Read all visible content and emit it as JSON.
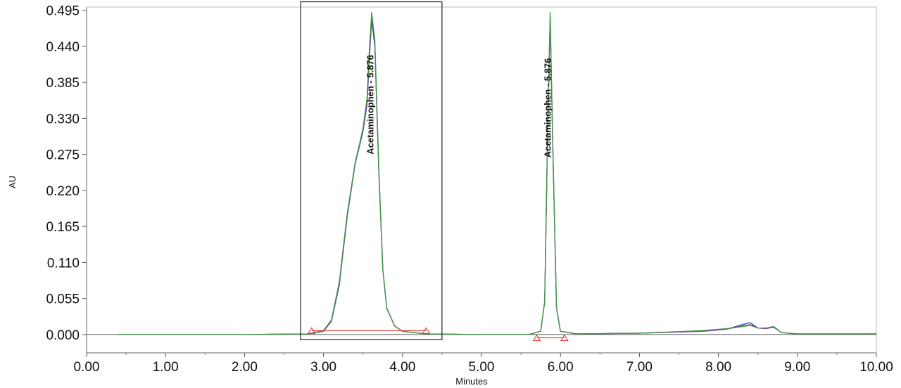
{
  "chart_data": {
    "type": "line",
    "title": "",
    "xlabel": "Minutes",
    "ylabel": "AU",
    "xlim": [
      0,
      10
    ],
    "ylim": [
      -0.028,
      0.5
    ],
    "x_ticks": [
      "0.00",
      "1.00",
      "2.00",
      "3.00",
      "4.00",
      "5.00",
      "6.00",
      "7.00",
      "8.00",
      "9.00",
      "10.00"
    ],
    "y_ticks": [
      "0.000",
      "0.055",
      "0.110",
      "0.165",
      "0.220",
      "0.275",
      "0.330",
      "0.385",
      "0.440",
      "0.495"
    ],
    "grid": false,
    "legend": "none",
    "colors": {
      "blue": "#2c3fa8",
      "purple": "#8a3fb0",
      "green": "#3d9a3d",
      "red": "#e83030"
    },
    "series": [
      {
        "color": "#2c3fa8",
        "x": [
          0.4,
          1.0,
          2.0,
          2.8,
          3.0,
          3.1,
          3.2,
          3.3,
          3.4,
          3.45,
          3.5,
          3.55,
          3.58,
          3.61,
          3.65,
          3.7,
          3.75,
          3.8,
          3.9,
          4.0,
          4.3,
          5.0,
          5.6,
          5.75,
          5.8,
          5.84,
          5.87,
          5.9,
          5.95,
          6.0,
          6.2,
          7.0,
          7.8,
          8.1,
          8.3,
          8.4,
          8.5,
          8.6,
          8.7,
          8.8,
          9.0,
          10.0
        ],
        "y": [
          0.0,
          0.0,
          0.0,
          0.001,
          0.005,
          0.02,
          0.075,
          0.18,
          0.26,
          0.285,
          0.31,
          0.35,
          0.42,
          0.48,
          0.44,
          0.25,
          0.1,
          0.04,
          0.013,
          0.005,
          0.001,
          0.0,
          0.0,
          0.005,
          0.05,
          0.32,
          0.48,
          0.3,
          0.04,
          0.005,
          0.001,
          0.002,
          0.005,
          0.008,
          0.015,
          0.018,
          0.01,
          0.009,
          0.012,
          0.003,
          0.001,
          0.001
        ]
      },
      {
        "color": "#8a3fb0",
        "x": [
          0.4,
          1.0,
          2.0,
          2.8,
          3.0,
          3.1,
          3.2,
          3.3,
          3.4,
          3.45,
          3.5,
          3.55,
          3.58,
          3.61,
          3.65,
          3.7,
          3.75,
          3.8,
          3.9,
          4.0,
          4.3,
          5.0,
          5.6,
          5.75,
          5.8,
          5.84,
          5.87,
          5.9,
          5.95,
          6.0,
          6.2,
          7.0,
          7.8,
          8.1,
          8.3,
          8.4,
          8.5,
          8.6,
          8.7,
          8.8,
          9.0,
          10.0
        ],
        "y": [
          0.0,
          0.0,
          0.0,
          0.001,
          0.006,
          0.022,
          0.08,
          0.185,
          0.262,
          0.287,
          0.313,
          0.355,
          0.425,
          0.485,
          0.445,
          0.252,
          0.1,
          0.04,
          0.013,
          0.005,
          0.001,
          0.0,
          0.0,
          0.005,
          0.05,
          0.322,
          0.485,
          0.302,
          0.04,
          0.005,
          0.001,
          0.002,
          0.005,
          0.008,
          0.013,
          0.015,
          0.01,
          0.009,
          0.011,
          0.003,
          0.001,
          0.001
        ]
      },
      {
        "color": "#3d9a3d",
        "x": [
          0.4,
          1.0,
          2.0,
          2.8,
          3.0,
          3.1,
          3.2,
          3.3,
          3.4,
          3.45,
          3.5,
          3.55,
          3.58,
          3.61,
          3.65,
          3.7,
          3.75,
          3.8,
          3.9,
          4.0,
          4.3,
          5.0,
          5.6,
          5.75,
          5.8,
          5.84,
          5.87,
          5.9,
          5.95,
          6.0,
          6.2,
          7.0,
          7.8,
          8.1,
          8.3,
          8.4,
          8.5,
          8.6,
          8.7,
          8.8,
          9.0,
          10.0
        ],
        "y": [
          0.0,
          0.0,
          0.0,
          0.001,
          0.005,
          0.02,
          0.077,
          0.182,
          0.262,
          0.288,
          0.315,
          0.36,
          0.435,
          0.492,
          0.45,
          0.255,
          0.1,
          0.041,
          0.013,
          0.005,
          0.001,
          0.0,
          0.0,
          0.005,
          0.05,
          0.325,
          0.492,
          0.305,
          0.041,
          0.005,
          0.001,
          0.002,
          0.006,
          0.009,
          0.012,
          0.014,
          0.01,
          0.01,
          0.012,
          0.003,
          0.001,
          0.001
        ]
      }
    ],
    "baselines": [
      {
        "color": "#e83030",
        "x": [
          2.85,
          4.3
        ],
        "y": [
          0.006,
          0.006
        ]
      },
      {
        "color": "#e83030",
        "x": [
          5.7,
          6.05
        ],
        "y": [
          -0.005,
          -0.005
        ]
      }
    ],
    "baseline_markers": [
      {
        "x": 2.85,
        "y": 0.006
      },
      {
        "x": 4.3,
        "y": 0.006
      },
      {
        "x": 5.7,
        "y": -0.005
      },
      {
        "x": 6.05,
        "y": -0.005
      }
    ],
    "annotations": [
      {
        "text": "Acetaminophen - 5.876",
        "x": 3.63,
        "y": 0.275
      },
      {
        "text": "Acetaminophen - 5.876",
        "x": 5.88,
        "y": 0.27
      }
    ],
    "zoom_box": {
      "x": [
        2.71,
        4.5
      ],
      "y": [
        -0.008,
        0.508
      ]
    }
  }
}
